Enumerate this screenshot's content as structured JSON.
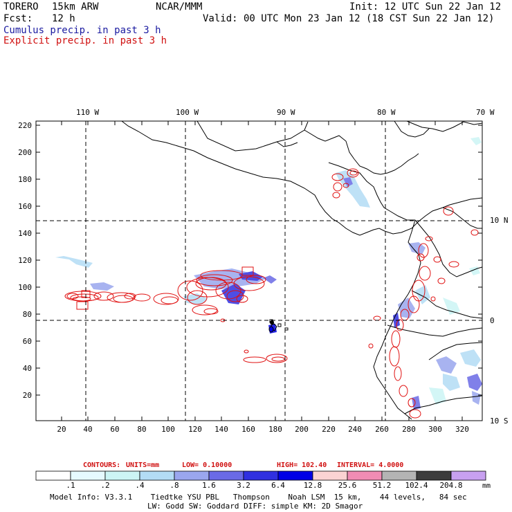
{
  "header": {
    "model_name": "TORERO",
    "model_res": "15km ARW",
    "org": "NCAR/MMM",
    "init": "Init: 12 UTC Sun 22 Jan 12",
    "fcst_label": "Fcst:",
    "fcst_value": "12 h",
    "valid": "Valid: 00 UTC Mon 23 Jan 12 (18 CST Sun 22 Jan 12)",
    "line_blue": "Cumulus precip. in past 3 h",
    "line_red": "Explicit precip. in past 3 h"
  },
  "map": {
    "top_lon_labels": [
      "110 W",
      "100 W",
      "90 W",
      "80 W",
      "70 W"
    ],
    "right_lat_labels": [
      "10 N",
      "0",
      "10 S"
    ],
    "y_ticks": [
      "220",
      "200",
      "180",
      "160",
      "140",
      "120",
      "100",
      "80",
      "60",
      "40",
      "20"
    ],
    "x_ticks": [
      "20",
      "40",
      "60",
      "80",
      "100",
      "120",
      "140",
      "160",
      "180",
      "200",
      "220",
      "240",
      "260",
      "280",
      "300",
      "320"
    ]
  },
  "contour_info": {
    "label": "CONTOURS:",
    "units": "UNITS=mm",
    "low": "LOW= 0.10000",
    "high": "HIGH= 102.40",
    "interval": "INTERVAL= 4.0000"
  },
  "colorbar": {
    "labels": [
      ".1",
      ".2",
      ".4",
      ".8",
      "1.6",
      "3.2",
      "6.4",
      "12.8",
      "25.6",
      "51.2",
      "102.4",
      "204.8"
    ],
    "colors": [
      "#ffffff",
      "#e6faff",
      "#ccf5f5",
      "#b3dcf5",
      "#9aa6ee",
      "#6a6ae6",
      "#3030e0",
      "#0000e6",
      "#fbd3d3",
      "#f08cb4",
      "#b4b4b4",
      "#3c3c3c",
      "#c8a0f0"
    ],
    "unit": "mm"
  },
  "footer": {
    "line1": "Model Info: V3.3.1    Tiedtke YSU PBL   Thompson    Noah LSM  15 km,    44 levels,   84 sec",
    "line2": "LW: Godd SW: Goddard DIFF: simple KM: 2D Smagor"
  }
}
